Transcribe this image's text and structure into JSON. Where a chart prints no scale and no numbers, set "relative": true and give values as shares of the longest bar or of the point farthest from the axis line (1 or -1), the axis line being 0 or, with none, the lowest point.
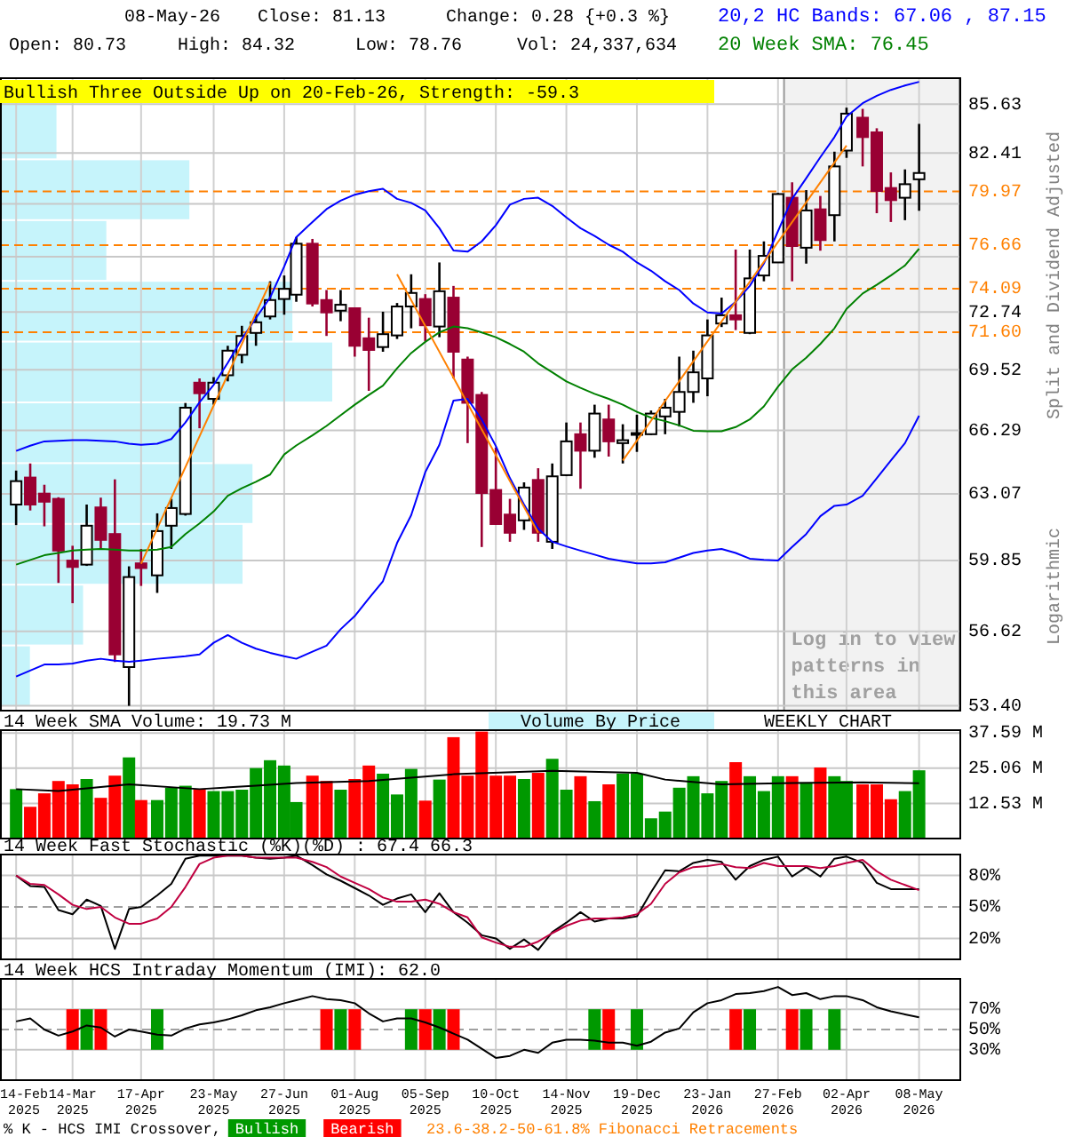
{
  "chart_data": [
    {
      "type": "candlestick",
      "title": "Bullish Three Outside Up on 20-Feb-26, Strength: -59.3",
      "ylabel": "Split and Dividend Adjusted",
      "annotations": [
        "08-May-26",
        "Close: 81.13",
        "Change: 0.28 {+0.3 %}",
        "Open: 80.73",
        "High: 84.32",
        "Low: 78.76",
        "Vol: 24,337,634",
        "Logarithmic"
      ],
      "x": [
        "2025-02-14",
        "2025-02-21",
        "2025-02-28",
        "2025-03-07",
        "2025-03-14",
        "2025-03-21",
        "2025-03-28",
        "2025-04-04",
        "2025-04-11",
        "2025-04-17",
        "2025-04-25",
        "2025-05-02",
        "2025-05-09",
        "2025-05-16",
        "2025-05-23",
        "2025-05-30",
        "2025-06-06",
        "2025-06-13",
        "2025-06-20",
        "2025-06-27",
        "2025-07-03",
        "2025-07-11",
        "2025-07-18",
        "2025-07-25",
        "2025-08-01",
        "2025-08-08",
        "2025-08-15",
        "2025-08-22",
        "2025-08-29",
        "2025-09-05",
        "2025-09-12",
        "2025-09-19",
        "2025-09-26",
        "2025-10-03",
        "2025-10-10",
        "2025-10-17",
        "2025-10-24",
        "2025-10-31",
        "2025-11-07",
        "2025-11-14",
        "2025-11-21",
        "2025-11-28",
        "2025-12-05",
        "2025-12-12",
        "2025-12-19",
        "2025-12-26",
        "2026-01-02",
        "2026-01-09",
        "2026-01-16",
        "2026-01-23",
        "2026-01-30",
        "2026-02-06",
        "2026-02-13",
        "2026-02-20",
        "2026-02-27",
        "2026-03-06",
        "2026-03-13",
        "2026-03-20",
        "2026-03-27",
        "2026-04-02",
        "2026-04-10",
        "2026-04-17",
        "2026-04-24",
        "2026-05-01",
        "2026-05-08"
      ],
      "ohlc": [
        [
          62.54,
          64.23,
          61.54,
          63.7
        ],
        [
          63.88,
          64.59,
          62.25,
          62.54
        ],
        [
          63.08,
          63.52,
          61.48,
          62.68
        ],
        [
          62.82,
          62.9,
          58.81,
          60.32
        ],
        [
          59.85,
          60.55,
          57.88,
          59.55
        ],
        [
          59.66,
          62.54,
          59.6,
          61.51
        ],
        [
          62.4,
          62.88,
          60.4,
          60.83
        ],
        [
          61.11,
          63.79,
          55.27,
          55.6
        ],
        [
          55.05,
          59.58,
          53.4,
          59.08
        ],
        [
          59.72,
          60.4,
          58.67,
          59.5
        ],
        [
          59.16,
          62.11,
          58.35,
          61.25
        ],
        [
          61.51,
          62.82,
          60.4,
          62.37
        ],
        [
          62.08,
          67.73,
          62.0,
          67.48
        ],
        [
          68.82,
          69.05,
          66.4,
          68.25
        ],
        [
          67.95,
          69.12,
          67.64,
          68.82
        ],
        [
          69.22,
          70.84,
          68.89,
          70.57
        ],
        [
          70.34,
          71.96,
          69.87,
          71.39
        ],
        [
          71.56,
          72.66,
          70.84,
          72.16
        ],
        [
          72.49,
          74.52,
          72.32,
          73.43
        ],
        [
          73.49,
          74.86,
          72.59,
          74.08
        ],
        [
          73.74,
          77.15,
          73.33,
          76.75
        ],
        [
          76.75,
          77.04,
          73.06,
          73.23
        ],
        [
          73.43,
          74.01,
          71.39,
          72.72
        ],
        [
          72.82,
          74.01,
          72.22,
          73.16
        ],
        [
          72.96,
          73.0,
          70.24,
          70.84
        ],
        [
          71.26,
          72.42,
          68.38,
          70.61
        ],
        [
          70.77,
          72.76,
          70.51,
          71.49
        ],
        [
          71.42,
          73.26,
          71.22,
          73.06
        ],
        [
          73.06,
          74.93,
          71.82,
          73.84
        ],
        [
          73.49,
          73.77,
          71.09,
          71.99
        ],
        [
          71.92,
          75.63,
          71.32,
          73.94
        ],
        [
          73.57,
          74.25,
          69.05,
          70.51
        ],
        [
          70.08,
          70.24,
          65.63,
          67.74
        ],
        [
          68.16,
          68.32,
          60.49,
          63.11
        ],
        [
          63.26,
          65.4,
          61.55,
          61.59
        ],
        [
          62.05,
          62.82,
          60.74,
          61.17
        ],
        [
          61.77,
          63.64,
          61.31,
          63.38
        ],
        [
          63.76,
          64.35,
          60.74,
          61.17
        ],
        [
          60.74,
          64.59,
          60.4,
          63.94
        ],
        [
          64.0,
          66.7,
          63.95,
          65.72
        ],
        [
          66.09,
          66.7,
          63.32,
          65.24
        ],
        [
          65.24,
          67.64,
          64.88,
          67.17
        ],
        [
          66.86,
          67.64,
          64.94,
          65.72
        ],
        [
          65.63,
          66.61,
          64.59,
          65.78
        ],
        [
          66.09,
          67.11,
          65.18,
          66.15
        ],
        [
          66.09,
          67.33,
          66.05,
          67.17
        ],
        [
          67.02,
          67.95,
          66.09,
          67.48
        ],
        [
          67.26,
          70.24,
          66.49,
          68.32
        ],
        [
          68.32,
          70.57,
          67.74,
          69.38
        ],
        [
          69.05,
          72.32,
          68.09,
          71.42
        ],
        [
          72.09,
          73.57,
          71.89,
          72.56
        ],
        [
          72.56,
          76.4,
          71.72,
          72.32
        ],
        [
          71.56,
          76.4,
          71.49,
          74.69
        ],
        [
          74.86,
          76.89,
          74.52,
          76.02
        ],
        [
          75.63,
          79.87,
          75.6,
          79.8
        ],
        [
          79.57,
          80.54,
          74.52,
          76.61
        ],
        [
          76.51,
          80.05,
          75.56,
          78.78
        ],
        [
          78.85,
          79.68,
          76.33,
          76.97
        ],
        [
          78.49,
          82.5,
          76.89,
          81.55
        ],
        [
          82.57,
          85.4,
          82.1,
          85.0
        ],
        [
          84.73,
          85.32,
          81.55,
          83.45
        ],
        [
          83.76,
          84.03,
          78.61,
          79.99
        ],
        [
          80.18,
          81.17,
          78.07,
          79.42
        ],
        [
          79.57,
          81.36,
          78.18,
          80.42
        ],
        [
          80.73,
          84.32,
          78.76,
          81.13
        ]
      ],
      "series": [
        {
          "type": "line",
          "name": "20,2 HC Bands: 67.06 , 87.15",
          "color": "#0000ff",
          "values": [
            65.23,
            65.5,
            65.72,
            65.75,
            65.78,
            65.78,
            65.75,
            65.72,
            65.6,
            65.54,
            65.6,
            65.84,
            66.7,
            67.77,
            68.7,
            69.9,
            71.22,
            72.4,
            73.57,
            75.38,
            77.15,
            78.07,
            78.86,
            79.39,
            79.76,
            79.98,
            80.13,
            79.5,
            79.25,
            78.78,
            77.69,
            76.34,
            76.27,
            76.89,
            77.87,
            79.14,
            79.5,
            79.57,
            79.06,
            78.35,
            77.69,
            77.22,
            76.69,
            76.27,
            75.63,
            75.14,
            74.52,
            74.01,
            73.23,
            72.72,
            72.66,
            73.33,
            74.25,
            75.56,
            77.51,
            79.5,
            80.8,
            82.14,
            83.45,
            84.8,
            85.7,
            86.2,
            86.6,
            86.9,
            87.15
          ]
        },
        {
          "type": "line",
          "color": "#0000ff",
          "values": [
            54.64,
            54.9,
            55.16,
            55.16,
            55.2,
            55.33,
            55.41,
            55.33,
            55.28,
            55.33,
            55.41,
            55.46,
            55.52,
            55.6,
            56.11,
            56.45,
            56.11,
            55.85,
            55.67,
            55.52,
            55.41,
            55.72,
            55.98,
            56.71,
            57.3,
            58.1,
            58.89,
            60.68,
            62.02,
            64.15,
            65.54,
            67.86,
            67.95,
            66.86,
            65.48,
            63.85,
            62.54,
            61.37,
            60.74,
            60.52,
            60.32,
            60.13,
            59.94,
            59.82,
            59.72,
            59.72,
            59.77,
            59.99,
            60.21,
            60.32,
            60.4,
            60.21,
            59.94,
            59.88,
            59.85,
            60.49,
            61.11,
            61.97,
            62.48,
            62.54,
            62.97,
            63.85,
            64.74,
            65.63,
            67.06
          ]
        },
        {
          "type": "line",
          "name": "20 Week SMA: 76.45",
          "color": "#008000",
          "values": [
            59.66,
            59.88,
            60.1,
            60.21,
            60.32,
            60.37,
            60.4,
            60.37,
            60.32,
            60.32,
            60.37,
            60.49,
            61.11,
            61.62,
            62.2,
            62.97,
            63.35,
            63.67,
            64.03,
            65.05,
            65.51,
            66.03,
            66.52,
            67.08,
            67.64,
            68.16,
            68.66,
            69.6,
            70.44,
            71.06,
            71.59,
            71.92,
            71.82,
            71.59,
            71.32,
            70.94,
            70.51,
            69.87,
            69.38,
            68.89,
            68.54,
            68.22,
            67.95,
            67.64,
            67.26,
            66.95,
            66.77,
            66.55,
            66.27,
            66.24,
            66.24,
            66.46,
            66.86,
            67.55,
            68.6,
            69.54,
            70.18,
            70.94,
            71.82,
            72.92,
            73.81,
            74.31,
            74.86,
            75.45,
            76.45
          ]
        },
        {
          "type": "line",
          "color": "#ff8000",
          "x": [
            "2025-04-17",
            "2025-06-20"
          ],
          "values": [
            59.7,
            74.45
          ]
        },
        {
          "type": "line",
          "color": "#ff8000",
          "x": [
            "2025-08-22",
            "2025-10-31"
          ],
          "values": [
            74.93,
            61.17
          ]
        },
        {
          "type": "line",
          "color": "#ff8000",
          "x": [
            "2025-12-12",
            "2026-04-02"
          ],
          "values": [
            64.74,
            82.9
          ]
        }
      ],
      "ref_lines": [
        {
          "axis": "y",
          "value": 79.97,
          "label": "79.97",
          "color": "#ff8000",
          "line_style": "dashed"
        },
        {
          "axis": "y",
          "value": 76.66,
          "label": "76.66",
          "color": "#ff8000",
          "line_style": "dashed"
        },
        {
          "axis": "y",
          "value": 74.09,
          "label": "74.09",
          "color": "#ff8000",
          "line_style": "dashed"
        },
        {
          "axis": "y",
          "value": 71.6,
          "label": "71.60",
          "color": "#ff8000",
          "line_style": "dashed"
        }
      ],
      "bands": [
        {
          "axis": "x",
          "from": "2026-03-02",
          "to": "2026-05-28",
          "label": "Log in to view patterns in this area",
          "color": "#f2f2f2"
        }
      ],
      "xlim": [
        "2025-02-06",
        "2026-05-28"
      ],
      "xticks": [
        {
          "value": "2025-02-14",
          "label": null
        },
        {
          "value": "2025-03-14",
          "label": null
        },
        {
          "value": "2025-04-17",
          "label": null
        },
        {
          "value": "2025-05-23",
          "label": null
        },
        {
          "value": "2025-06-27",
          "label": null
        },
        {
          "value": "2025-08-01",
          "label": null
        },
        {
          "value": "2025-09-05",
          "label": null
        },
        {
          "value": "2025-10-10",
          "label": null
        },
        {
          "value": "2025-11-14",
          "label": null
        },
        {
          "value": "2025-12-19",
          "label": null
        },
        {
          "value": "2026-01-23",
          "label": null
        },
        {
          "value": "2026-02-27",
          "label": null
        },
        {
          "value": "2026-04-02",
          "label": null
        },
        {
          "value": "2026-05-08",
          "label": null
        }
      ],
      "ylim": [
        53.2,
        87.4
      ],
      "log": true,
      "yticks": [
        85.63,
        82.41,
        {
          "value": 79.19,
          "label": null
        },
        {
          "value": 75.97,
          "label": null
        },
        72.74,
        69.52,
        66.29,
        63.07,
        59.85,
        56.62,
        {
          "value": 53.4,
          "label": "53.40"
        }
      ],
      "grid": true,
      "legend": "top right",
      "tick_labels": "y"
    },
    {
      "type": "bar",
      "orientation": "horizontal",
      "relative": true,
      "legend": "bottom",
      "categories": [
        null,
        null,
        null,
        null,
        null,
        null,
        null,
        null,
        null,
        null
      ],
      "series": [
        {
          "name": "Volume By Price",
          "color": "#c6f4fb",
          "values": [
            0.17,
            0.57,
            0.32,
            0.88,
            1,
            0.64,
            0.76,
            0.73,
            0.25,
            0.09
          ]
        }
      ]
    },
    {
      "type": "bar",
      "title": "14 Week SMA Volume: 19.73 M",
      "annotations": [
        "WEEKLY CHART"
      ],
      "x": [
        "2025-02-14",
        "2025-02-21",
        "2025-02-28",
        "2025-03-07",
        "2025-03-14",
        "2025-03-21",
        "2025-03-28",
        "2025-04-04",
        "2025-04-11",
        "2025-04-17",
        "2025-04-25",
        "2025-05-02",
        "2025-05-09",
        "2025-05-16",
        "2025-05-23",
        "2025-05-30",
        "2025-06-06",
        "2025-06-13",
        "2025-06-20",
        "2025-06-27",
        "2025-07-03",
        "2025-07-11",
        "2025-07-18",
        "2025-07-25",
        "2025-08-01",
        "2025-08-08",
        "2025-08-15",
        "2025-08-22",
        "2025-08-29",
        "2025-09-05",
        "2025-09-12",
        "2025-09-19",
        "2025-09-26",
        "2025-10-03",
        "2025-10-10",
        "2025-10-17",
        "2025-10-24",
        "2025-10-31",
        "2025-11-07",
        "2025-11-14",
        "2025-11-21",
        "2025-11-28",
        "2025-12-05",
        "2025-12-12",
        "2025-12-19",
        "2025-12-26",
        "2026-01-02",
        "2026-01-09",
        "2026-01-16",
        "2026-01-23",
        "2026-01-30",
        "2026-02-06",
        "2026-02-13",
        "2026-02-20",
        "2026-02-27",
        "2026-03-06",
        "2026-03-13",
        "2026-03-20",
        "2026-03-27",
        "2026-04-02",
        "2026-04-10",
        "2026-04-17",
        "2026-04-24",
        "2026-05-01",
        "2026-05-08"
      ],
      "values": [
        17.6,
        11.3,
        16.1,
        20.5,
        19.3,
        21.2,
        14.5,
        22.4,
        28.9,
        13.7,
        13.7,
        18.1,
        18.8,
        17.6,
        16.9,
        16.9,
        17.4,
        25.1,
        27.9,
        26.0,
        13.0,
        22.4,
        20.5,
        17.4,
        21.2,
        26.0,
        23.1,
        15.7,
        24.8,
        13.5,
        21.0,
        36.1,
        22.4,
        38.1,
        22.4,
        22.4,
        21.2,
        23.4,
        28.4,
        17.4,
        22.2,
        13.3,
        19.3,
        23.1,
        23.1,
        7.2,
        9.6,
        18.1,
        22.2,
        16.1,
        20.5,
        27.2,
        22.2,
        16.9,
        22.2,
        22.2,
        20.0,
        25.3,
        22.2,
        20.5,
        19.3,
        19.3,
        14.0,
        16.9,
        24.3
      ],
      "colors": [
        "#009900",
        "#ff0000",
        "#ff0000",
        "#ff0000",
        "#ff0000",
        "#009900",
        "#ff0000",
        "#ff0000",
        "#009900",
        "#ff0000",
        "#009900",
        "#009900",
        "#009900",
        "#ff0000",
        "#009900",
        "#009900",
        "#009900",
        "#009900",
        "#009900",
        "#009900",
        "#009900",
        "#ff0000",
        "#ff0000",
        "#009900",
        "#ff0000",
        "#ff0000",
        "#009900",
        "#009900",
        "#009900",
        "#ff0000",
        "#009900",
        "#ff0000",
        "#ff0000",
        "#ff0000",
        "#ff0000",
        "#ff0000",
        "#009900",
        "#ff0000",
        "#009900",
        "#009900",
        "#ff0000",
        "#009900",
        "#ff0000",
        "#009900",
        "#009900",
        "#009900",
        "#009900",
        "#009900",
        "#009900",
        "#009900",
        "#009900",
        "#ff0000",
        "#009900",
        "#009900",
        "#009900",
        "#ff0000",
        "#009900",
        "#ff0000",
        "#009900",
        "#009900",
        "#ff0000",
        "#ff0000",
        "#ff0000",
        "#009900",
        "#009900"
      ],
      "series": [
        {
          "type": "line",
          "color": "#000000",
          "x": [
            "2025-02-14",
            "2025-03-07",
            "2025-04-04",
            "2025-04-11",
            "2025-05-16",
            "2025-06-13",
            "2025-07-03",
            "2025-08-08",
            "2025-09-19",
            "2025-11-07",
            "2025-12-19",
            "2026-01-02",
            "2026-01-30",
            "2026-03-06",
            "2026-04-10",
            "2026-05-08"
          ],
          "values": [
            17.6,
            16.9,
            18.8,
            19.3,
            17.6,
            18.8,
            19.8,
            20.5,
            22.9,
            24.1,
            23.4,
            21.0,
            19.3,
            19.8,
            20.0,
            19.7
          ]
        }
      ],
      "xlim": [
        "2025-02-06",
        "2026-05-28"
      ],
      "xticks": [
        {
          "value": "2025-02-14",
          "label": null
        },
        {
          "value": "2025-03-14",
          "label": null
        },
        {
          "value": "2025-04-17",
          "label": null
        },
        {
          "value": "2025-05-23",
          "label": null
        },
        {
          "value": "2025-06-27",
          "label": null
        },
        {
          "value": "2025-08-01",
          "label": null
        },
        {
          "value": "2025-09-05",
          "label": null
        },
        {
          "value": "2025-10-10",
          "label": null
        },
        {
          "value": "2025-11-14",
          "label": null
        },
        {
          "value": "2025-12-19",
          "label": null
        },
        {
          "value": "2026-01-23",
          "label": null
        },
        {
          "value": "2026-02-27",
          "label": null
        },
        {
          "value": "2026-04-02",
          "label": null
        },
        {
          "value": "2026-05-08",
          "label": null
        }
      ],
      "ylim": [
        0,
        38.6
      ],
      "yticks": [
        {
          "value": 12.53,
          "label": "12.53 M"
        },
        {
          "value": 25.06,
          "label": "25.06 M"
        },
        {
          "value": 37.59,
          "label": "37.59 M"
        }
      ],
      "grid": true,
      "tick_labels": "y"
    },
    {
      "type": "line",
      "title": "14 Week Fast Stochastic (%K)(%D) : 67.4  66.3",
      "x": [
        "2025-02-14",
        "2025-02-21",
        "2025-02-28",
        "2025-03-07",
        "2025-03-14",
        "2025-03-21",
        "2025-03-28",
        "2025-04-04",
        "2025-04-11",
        "2025-04-17",
        "2025-04-25",
        "2025-05-02",
        "2025-05-09",
        "2025-05-16",
        "2025-05-23",
        "2025-05-30",
        "2025-06-06",
        "2025-06-13",
        "2025-06-20",
        "2025-06-27",
        "2025-07-03",
        "2025-07-11",
        "2025-07-18",
        "2025-07-25",
        "2025-08-01",
        "2025-08-08",
        "2025-08-15",
        "2025-08-22",
        "2025-08-29",
        "2025-09-05",
        "2025-09-12",
        "2025-09-19",
        "2025-09-26",
        "2025-10-03",
        "2025-10-10",
        "2025-10-17",
        "2025-10-24",
        "2025-10-31",
        "2025-11-07",
        "2025-11-14",
        "2025-11-21",
        "2025-11-28",
        "2025-12-05",
        "2025-12-12",
        "2025-12-19",
        "2025-12-26",
        "2026-01-02",
        "2026-01-09",
        "2026-01-16",
        "2026-01-23",
        "2026-01-30",
        "2026-02-06",
        "2026-02-13",
        "2026-02-20",
        "2026-02-27",
        "2026-03-06",
        "2026-03-13",
        "2026-03-20",
        "2026-03-27",
        "2026-04-02",
        "2026-04-10",
        "2026-04-17",
        "2026-04-24",
        "2026-05-01",
        "2026-05-08"
      ],
      "series": [
        {
          "color": "#000000",
          "values": [
            80,
            70,
            69,
            47,
            43,
            57,
            51,
            10,
            48,
            50,
            61,
            72,
            96,
            99,
            99,
            99,
            99,
            97,
            96,
            97,
            99,
            90,
            81,
            75,
            68,
            61,
            52,
            58,
            62,
            45,
            63,
            45,
            35,
            23,
            20,
            10,
            19,
            9,
            26,
            35,
            45,
            36,
            39,
            39,
            41,
            64,
            85,
            84,
            92,
            95,
            93,
            76,
            89,
            95,
            98,
            79,
            88,
            79,
            96,
            98,
            92,
            73,
            67,
            67,
            67
          ]
        },
        {
          "color": "#c00040",
          "values": [
            80,
            72,
            71,
            62,
            52,
            48,
            50,
            40,
            34,
            34,
            39,
            50,
            69,
            91,
            97,
            99,
            99,
            97,
            97,
            97,
            97,
            93,
            88,
            79,
            73,
            67,
            59,
            55,
            55,
            57,
            53,
            45,
            40,
            21,
            16,
            12,
            12,
            17,
            25,
            32,
            37,
            39,
            39,
            40,
            43,
            53,
            72,
            83,
            88,
            89,
            91,
            88,
            87,
            92,
            89,
            89,
            89,
            87,
            89,
            92,
            95,
            84,
            76,
            71,
            66
          ]
        }
      ],
      "ref_lines": [
        {
          "axis": "y",
          "value": 50,
          "color": "#a0a0a0",
          "line_style": "dashed"
        }
      ],
      "xlim": [
        "2025-02-06",
        "2026-05-28"
      ],
      "xticks": [
        {
          "value": "2025-02-14",
          "label": null
        },
        {
          "value": "2025-03-14",
          "label": null
        },
        {
          "value": "2025-04-17",
          "label": null
        },
        {
          "value": "2025-05-23",
          "label": null
        },
        {
          "value": "2025-06-27",
          "label": null
        },
        {
          "value": "2025-08-01",
          "label": null
        },
        {
          "value": "2025-09-05",
          "label": null
        },
        {
          "value": "2025-10-10",
          "label": null
        },
        {
          "value": "2025-11-14",
          "label": null
        },
        {
          "value": "2025-12-19",
          "label": null
        },
        {
          "value": "2026-01-23",
          "label": null
        },
        {
          "value": "2026-02-27",
          "label": null
        },
        {
          "value": "2026-04-02",
          "label": null
        },
        {
          "value": "2026-05-08",
          "label": null
        }
      ],
      "ylim": [
        0,
        100
      ],
      "yticks": [
        {
          "value": 20,
          "label": "20%"
        },
        {
          "value": 50,
          "label": "50%"
        },
        {
          "value": 80,
          "label": "80%"
        }
      ],
      "grid": true,
      "tick_labels": "y"
    },
    {
      "type": "line",
      "title": "14 Week HCS Intraday Momentum (IMI): 62.0",
      "legend": "bottom",
      "legend_title": "% K - HCS IMI Crossover,",
      "annotations": [
        "23.6-38.2-50-61.8% Fibonacci Retracements"
      ],
      "x": [
        "2025-02-14",
        "2025-02-21",
        "2025-02-28",
        "2025-03-07",
        "2025-03-14",
        "2025-03-21",
        "2025-03-28",
        "2025-04-04",
        "2025-04-11",
        "2025-04-17",
        "2025-04-25",
        "2025-05-02",
        "2025-05-09",
        "2025-05-16",
        "2025-05-23",
        "2025-05-30",
        "2025-06-06",
        "2025-06-13",
        "2025-06-20",
        "2025-06-27",
        "2025-07-03",
        "2025-07-11",
        "2025-07-18",
        "2025-07-25",
        "2025-08-01",
        "2025-08-08",
        "2025-08-15",
        "2025-08-22",
        "2025-08-29",
        "2025-09-05",
        "2025-09-12",
        "2025-09-19",
        "2025-09-26",
        "2025-10-03",
        "2025-10-10",
        "2025-10-17",
        "2025-10-24",
        "2025-10-31",
        "2025-11-07",
        "2025-11-14",
        "2025-11-21",
        "2025-11-28",
        "2025-12-05",
        "2025-12-12",
        "2025-12-19",
        "2025-12-26",
        "2026-01-02",
        "2026-01-09",
        "2026-01-16",
        "2026-01-23",
        "2026-01-30",
        "2026-02-06",
        "2026-02-13",
        "2026-02-20",
        "2026-02-27",
        "2026-03-06",
        "2026-03-13",
        "2026-03-20",
        "2026-03-27",
        "2026-04-02",
        "2026-04-10",
        "2026-04-17",
        "2026-04-24",
        "2026-05-01",
        "2026-05-08"
      ],
      "series": [
        {
          "type": "bar",
          "name": "Bullish",
          "color": "#009900",
          "x": [
            "2025-03-21",
            "2025-04-25",
            "2025-07-25",
            "2025-08-29",
            "2025-09-12",
            "2025-11-28",
            "2025-12-19",
            "2026-02-13",
            "2026-03-13",
            "2026-03-27"
          ],
          "base": [
            30,
            30,
            30,
            30,
            30,
            30,
            30,
            30,
            30,
            30
          ],
          "values": [
            40,
            40,
            40,
            40,
            40,
            40,
            40,
            40,
            40,
            40
          ]
        },
        {
          "type": "bar",
          "name": "Bearish",
          "color": "#ff0000",
          "x": [
            "2025-03-14",
            "2025-03-28",
            "2025-07-18",
            "2025-08-01",
            "2025-09-05",
            "2025-09-19",
            "2025-12-05",
            "2026-02-06",
            "2026-03-06"
          ],
          "base": [
            30,
            30,
            30,
            30,
            30,
            30,
            30,
            30,
            30
          ],
          "values": [
            40,
            40,
            40,
            40,
            40,
            40,
            40,
            40,
            40
          ]
        },
        {
          "type": "line",
          "color": "#000000",
          "values": [
            58,
            61,
            50,
            44,
            48,
            54,
            52,
            43,
            50,
            48,
            45,
            44,
            51,
            55,
            57,
            60,
            64,
            69,
            72,
            76,
            79,
            83,
            80,
            79,
            76,
            66,
            58,
            61,
            61,
            57,
            52,
            46,
            40,
            31,
            22,
            24,
            30,
            27,
            37,
            40,
            40,
            39,
            37,
            37,
            34,
            38,
            47,
            51,
            67,
            76,
            79,
            85,
            86,
            88,
            92,
            84,
            86,
            80,
            83,
            83,
            79,
            72,
            68,
            65,
            62
          ]
        }
      ],
      "ref_lines": [
        {
          "axis": "y",
          "value": 50,
          "color": "#a0a0a0",
          "line_style": "dashed"
        }
      ],
      "xlim": [
        "2025-02-06",
        "2026-05-28"
      ],
      "xticks": [
        {
          "value": "2025-02-14",
          "label": "14-Feb 2025"
        },
        {
          "value": "2025-03-14",
          "label": "14-Mar 2025"
        },
        {
          "value": "2025-04-17",
          "label": "17-Apr 2025"
        },
        {
          "value": "2025-05-23",
          "label": "23-May 2025"
        },
        {
          "value": "2025-06-27",
          "label": "27-Jun 2025"
        },
        {
          "value": "2025-08-01",
          "label": "01-Aug 2025"
        },
        {
          "value": "2025-09-05",
          "label": "05-Sep 2025"
        },
        {
          "value": "2025-10-10",
          "label": "10-Oct 2025"
        },
        {
          "value": "2025-11-14",
          "label": "14-Nov 2025"
        },
        {
          "value": "2025-12-19",
          "label": "19-Dec 2025"
        },
        {
          "value": "2026-01-23",
          "label": "23-Jan 2026"
        },
        {
          "value": "2026-02-27",
          "label": "27-Feb 2026"
        },
        {
          "value": "2026-04-02",
          "label": "02-Apr 2026"
        },
        {
          "value": "2026-05-08",
          "label": "08-May 2026"
        }
      ],
      "ylim": [
        0,
        100
      ],
      "yticks": [
        {
          "value": 30,
          "label": "30%"
        },
        {
          "value": 50,
          "label": "50%"
        },
        {
          "value": 70,
          "label": "70%"
        }
      ],
      "grid": true
    }
  ]
}
